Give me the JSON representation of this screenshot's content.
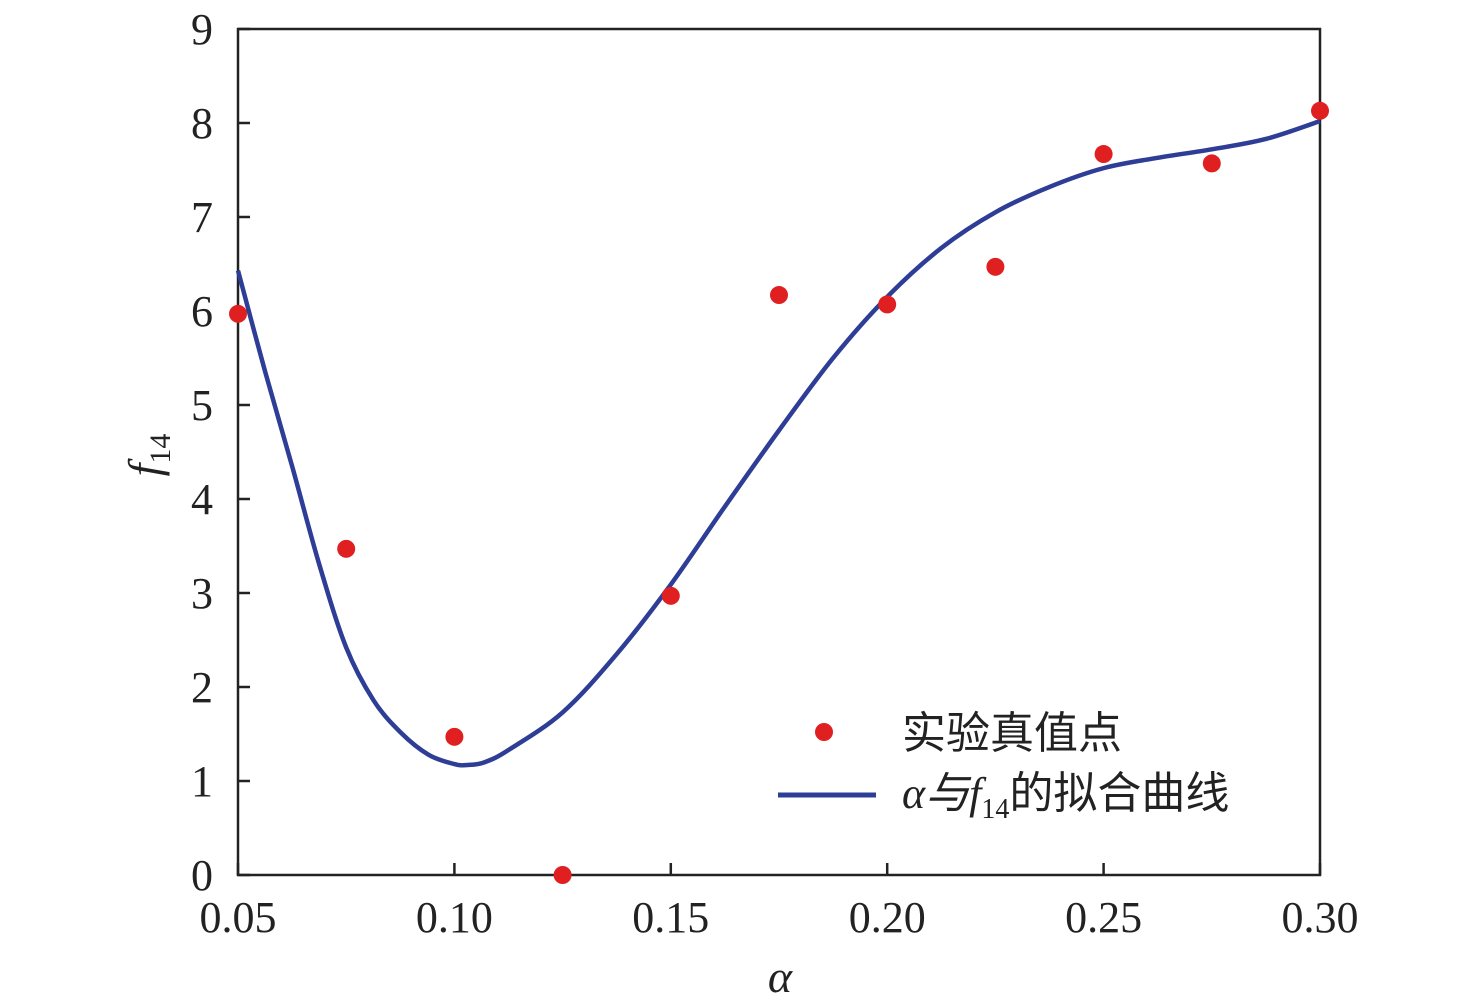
{
  "chart_data": {
    "type": "scatter",
    "title": "",
    "xlabel": "α",
    "ylabel": {
      "main": "f",
      "sub": "14"
    },
    "xlim": [
      0.05,
      0.3
    ],
    "ylim": [
      0,
      9
    ],
    "xticks": [
      "0.05",
      "0.10",
      "0.15",
      "0.20",
      "0.25",
      "0.30"
    ],
    "yticks": [
      "0",
      "1",
      "2",
      "3",
      "4",
      "5",
      "6",
      "7",
      "8",
      "9"
    ],
    "grid": false,
    "legend_position": "bottom-right",
    "series": [
      {
        "name": "实验真值点",
        "kind": "scatter",
        "color": "#e02020",
        "x": [
          0.05,
          0.075,
          0.1,
          0.125,
          0.15,
          0.175,
          0.2,
          0.225,
          0.25,
          0.275,
          0.3
        ],
        "y": [
          5.97,
          3.47,
          1.47,
          0.0,
          2.97,
          6.17,
          6.07,
          6.47,
          7.67,
          7.57,
          8.13
        ]
      },
      {
        "name_parts": {
          "pre": "α与f",
          "sub": "14",
          "post": "的拟合曲线"
        },
        "kind": "line",
        "color": "#2e3d96",
        "x": [
          0.05,
          0.0563,
          0.0625,
          0.0688,
          0.075,
          0.0813,
          0.0875,
          0.094,
          0.1,
          0.103,
          0.107,
          0.1125,
          0.125,
          0.1375,
          0.15,
          0.1625,
          0.175,
          0.1875,
          0.2,
          0.2125,
          0.225,
          0.2375,
          0.25,
          0.2625,
          0.275,
          0.2875,
          0.3
        ],
        "y": [
          6.43,
          5.35,
          4.35,
          3.3,
          2.42,
          1.86,
          1.52,
          1.28,
          1.18,
          1.17,
          1.2,
          1.33,
          1.73,
          2.35,
          3.09,
          3.92,
          4.73,
          5.5,
          6.15,
          6.67,
          7.05,
          7.32,
          7.52,
          7.63,
          7.72,
          7.83,
          8.02
        ]
      }
    ]
  }
}
